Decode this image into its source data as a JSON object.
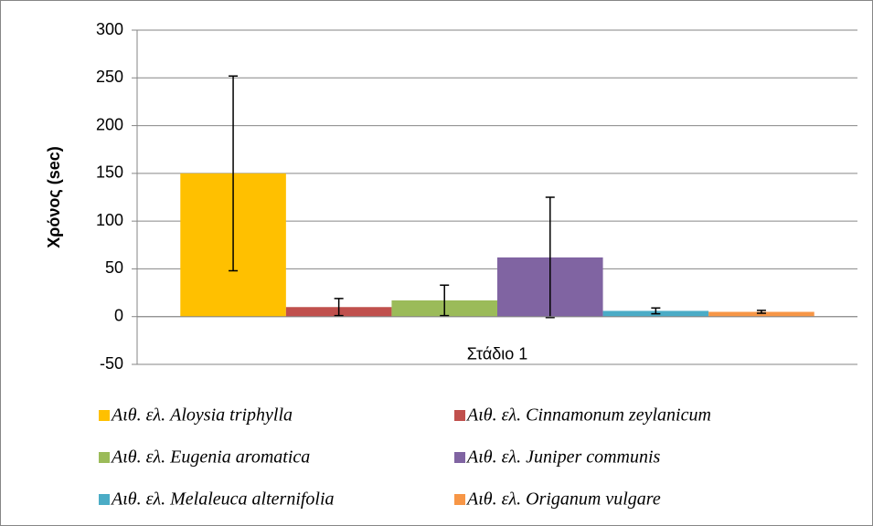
{
  "chart_data": {
    "type": "bar",
    "y_label": "Χρόνος (sec)",
    "categories": [
      "Στάδιο 1"
    ],
    "series": [
      {
        "name": "Αιθ. ελ. Aloysia triphylla",
        "color": "#FFC000",
        "values": [
          150
        ],
        "errors": [
          102
        ]
      },
      {
        "name": "Αιθ. ελ. Cinnamonum zeylanicum",
        "color": "#C0504D",
        "values": [
          10
        ],
        "errors": [
          9
        ]
      },
      {
        "name": "Αιθ. ελ. Eugenia aromatica",
        "color": "#9BBB59",
        "values": [
          17
        ],
        "errors": [
          16
        ]
      },
      {
        "name": "Αιθ. ελ. Juniper communis",
        "color": "#8064A2",
        "values": [
          62
        ],
        "errors": [
          63
        ]
      },
      {
        "name": "Αιθ. ελ. Melaleuca alternifolia",
        "color": "#4BACC6",
        "values": [
          6
        ],
        "errors": [
          3
        ]
      },
      {
        "name": "Αιθ. ελ. Origanum vulgare",
        "color": "#F79646",
        "values": [
          5
        ],
        "errors": [
          1.5
        ]
      }
    ],
    "ylim": [
      -50,
      300
    ],
    "yticks": [
      -50,
      0,
      50,
      100,
      150,
      200,
      250,
      300
    ],
    "grid": true,
    "legend": "bottom"
  }
}
